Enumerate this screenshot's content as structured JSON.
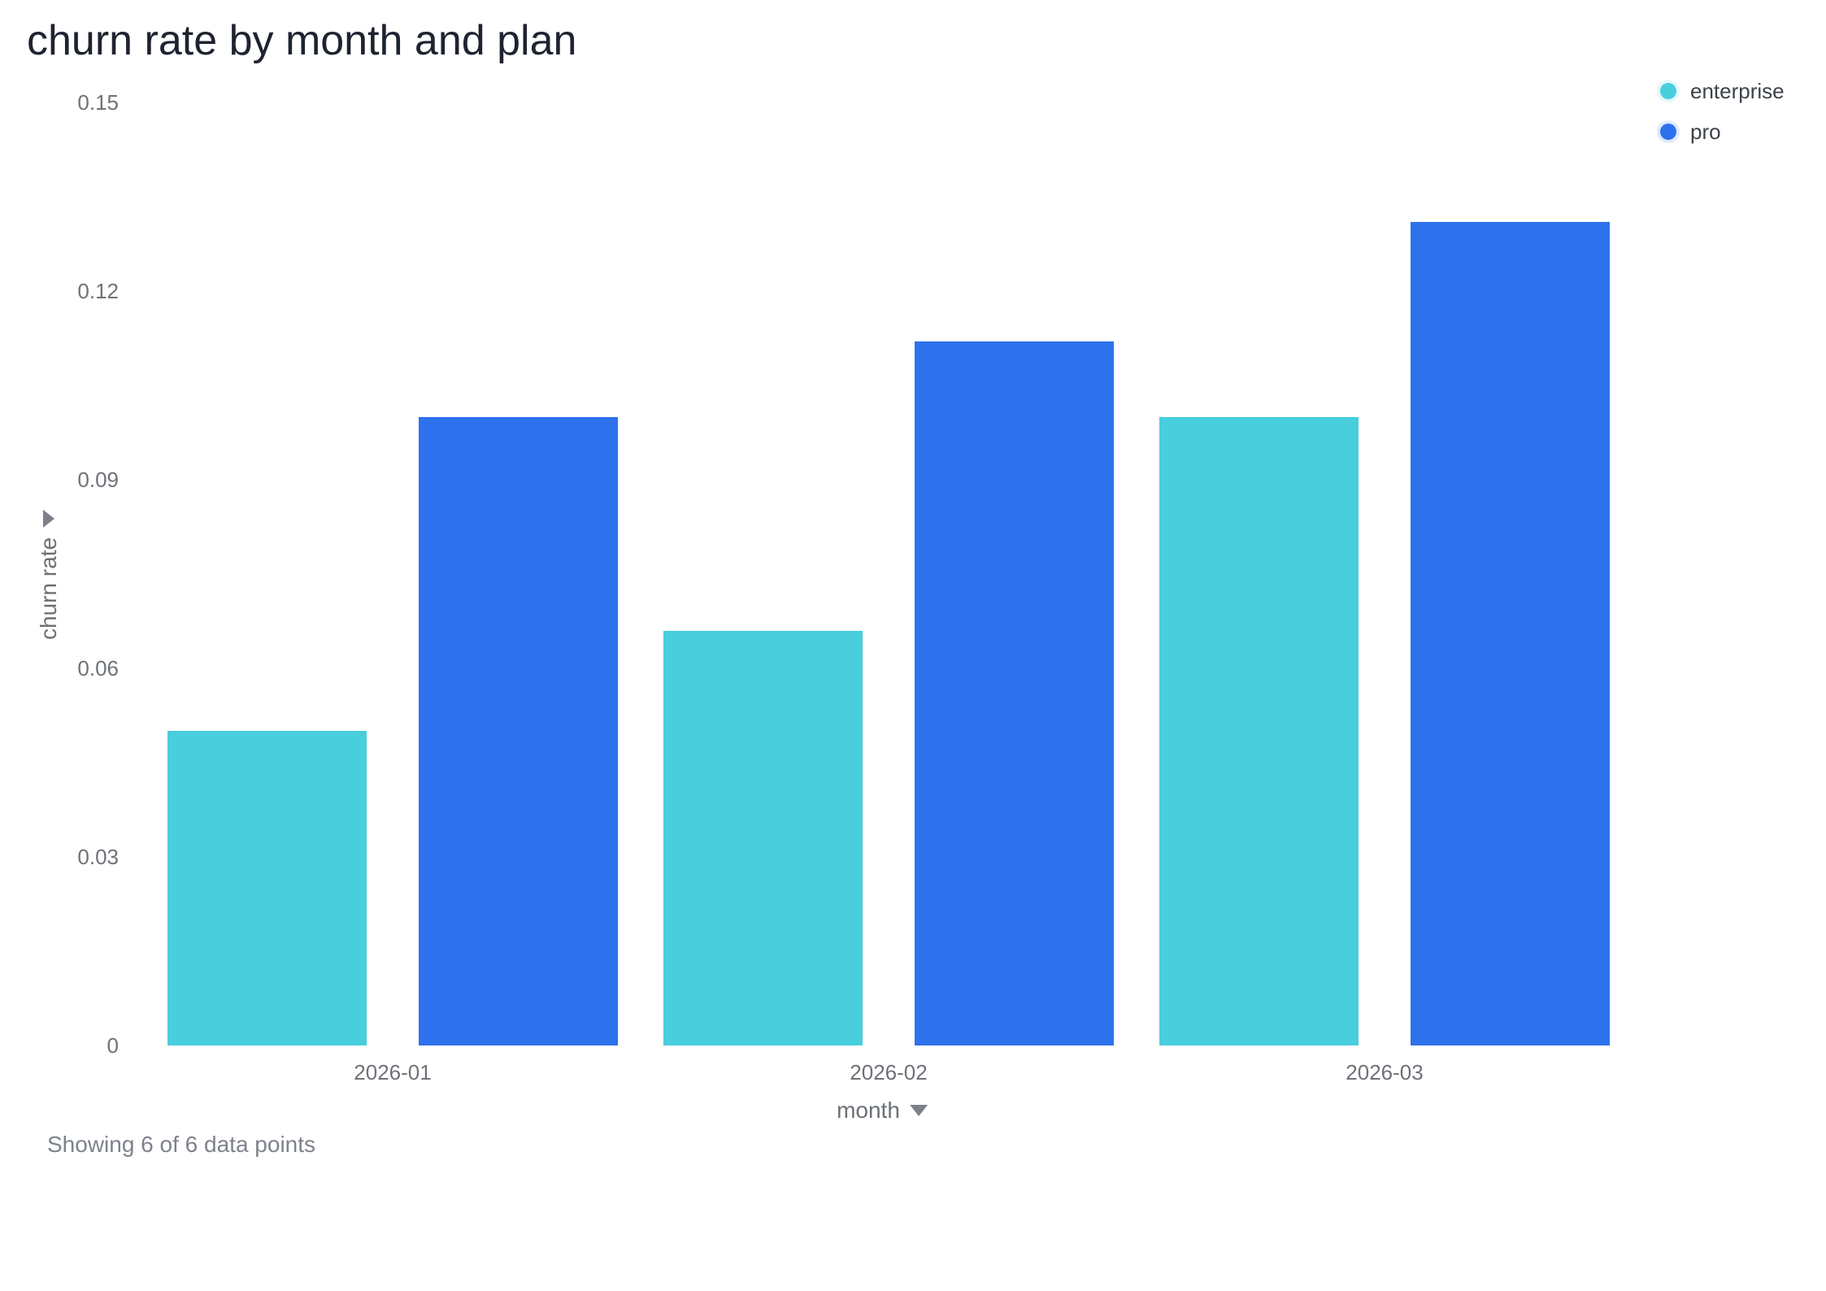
{
  "chart_data": {
    "type": "bar",
    "title": "churn rate by month and plan",
    "categories": [
      "2026-01",
      "2026-02",
      "2026-03"
    ],
    "series": [
      {
        "name": "enterprise",
        "color": "#48CEDD",
        "values": [
          0.05,
          0.066,
          0.1
        ]
      },
      {
        "name": "pro",
        "color": "#2E71EC",
        "values": [
          0.1,
          0.112,
          0.131
        ]
      }
    ],
    "xlabel": "month",
    "ylabel": "churn rate",
    "ylim": [
      0,
      0.15
    ],
    "y_tick_values": [
      0,
      0.03,
      0.06,
      0.09,
      0.12,
      0.15
    ],
    "y_tick_labels": [
      "0",
      "0.03",
      "0.06",
      "0.09",
      "0.12",
      "0.15"
    ],
    "grid": false,
    "legend_position": "top-right"
  },
  "footer": {
    "status_text": "Showing 6 of 6 data points"
  }
}
